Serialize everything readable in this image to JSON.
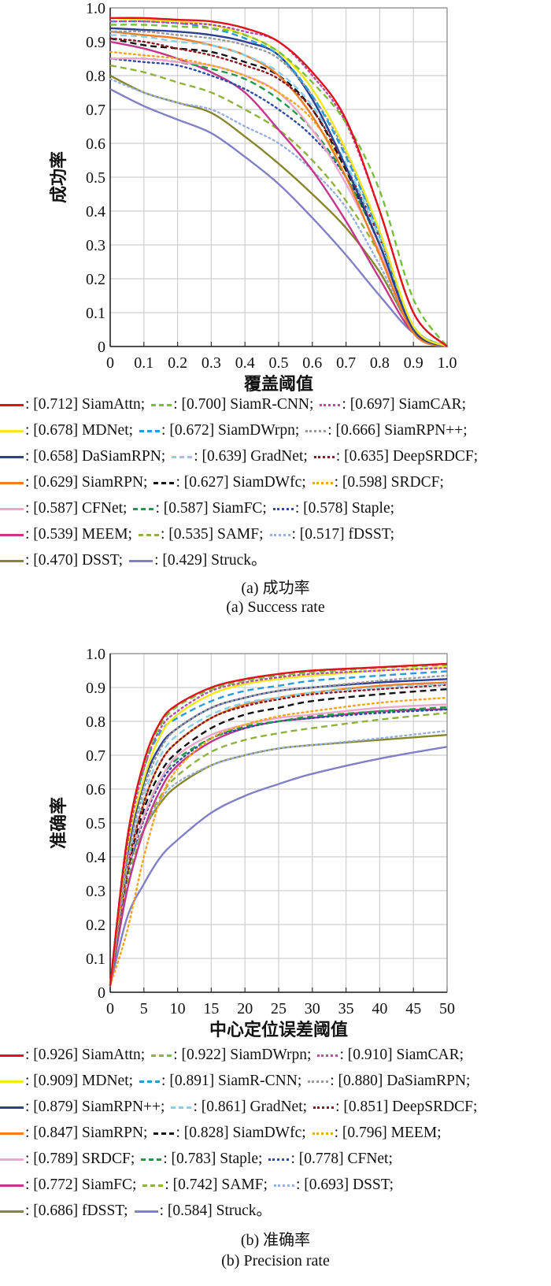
{
  "styles": [
    {
      "color": "#e0121c",
      "dash": "solid"
    },
    {
      "color": "#79bf3a",
      "dash": "dashed"
    },
    {
      "color": "#b24fa8",
      "dash": "dotted"
    },
    {
      "color": "#f2e81a",
      "dash": "solid"
    },
    {
      "color": "#2b9bd8",
      "dash": "dashed"
    },
    {
      "color": "#9a9a9a",
      "dash": "dotted"
    },
    {
      "color": "#2c3f93",
      "dash": "solid"
    },
    {
      "color": "#86cfe6",
      "dash": "dashed"
    },
    {
      "color": "#8c1620",
      "dash": "dotted"
    },
    {
      "color": "#f07d22",
      "dash": "solid"
    },
    {
      "color": "#111111",
      "dash": "dashed"
    },
    {
      "color": "#f5a31c",
      "dash": "dotted"
    },
    {
      "color": "#f0a6cc",
      "dash": "solid"
    },
    {
      "color": "#1d9b48",
      "dash": "dashed"
    },
    {
      "color": "#2e4aa3",
      "dash": "dotted"
    },
    {
      "color": "#c4358c",
      "dash": "solid"
    },
    {
      "color": "#8fb23c",
      "dash": "dashed"
    },
    {
      "color": "#97aee0",
      "dash": "dotted"
    },
    {
      "color": "#86862a",
      "dash": "solid"
    },
    {
      "color": "#8080c4",
      "dash": "solid"
    }
  ],
  "chart_data": [
    {
      "type": "line",
      "title": "",
      "xlabel": "覆盖阈值",
      "ylabel": "成功率",
      "xlim": [
        0,
        1
      ],
      "ylim": [
        0,
        1
      ],
      "xticks": [
        "0",
        "0.1",
        "0.2",
        "0.3",
        "0.4",
        "0.5",
        "0.6",
        "0.7",
        "0.8",
        "0.9",
        "1.0"
      ],
      "yticks": [
        "0",
        "0.1",
        "0.2",
        "0.3",
        "0.4",
        "0.5",
        "0.6",
        "0.7",
        "0.8",
        "0.9",
        "1.0"
      ],
      "grid": true,
      "legend_placement": "below",
      "caption_cn": "(a) 成功率",
      "caption_en": "(a) Success rate",
      "x": [
        0,
        0.1,
        0.2,
        0.3,
        0.4,
        0.5,
        0.6,
        0.7,
        0.8,
        0.9,
        1.0
      ],
      "series": [
        {
          "name": "SiamAttn",
          "score": "0.712",
          "suffix": ";",
          "values": [
            0.97,
            0.97,
            0.965,
            0.96,
            0.94,
            0.9,
            0.81,
            0.67,
            0.4,
            0.1,
            0
          ]
        },
        {
          "name": "SiamR-CNN",
          "score": "0.700",
          "suffix": ";",
          "values": [
            0.95,
            0.95,
            0.945,
            0.94,
            0.92,
            0.87,
            0.78,
            0.66,
            0.46,
            0.14,
            0
          ]
        },
        {
          "name": "SiamCAR",
          "score": "0.697",
          "suffix": ";",
          "values": [
            0.96,
            0.96,
            0.955,
            0.95,
            0.93,
            0.9,
            0.8,
            0.66,
            0.4,
            0.1,
            0
          ]
        },
        {
          "name": "MDNet",
          "score": "0.678",
          "suffix": ";",
          "values": [
            0.97,
            0.965,
            0.96,
            0.95,
            0.92,
            0.87,
            0.76,
            0.58,
            0.34,
            0.06,
            0
          ]
        },
        {
          "name": "SiamDWrpn",
          "score": "0.672",
          "suffix": ";",
          "values": [
            0.96,
            0.96,
            0.955,
            0.94,
            0.91,
            0.86,
            0.74,
            0.56,
            0.33,
            0.06,
            0
          ]
        },
        {
          "name": "SiamRPN++",
          "score": "0.666",
          "suffix": ";",
          "values": [
            0.93,
            0.93,
            0.92,
            0.91,
            0.89,
            0.85,
            0.74,
            0.57,
            0.33,
            0.06,
            0
          ]
        },
        {
          "name": "DaSiamRPN",
          "score": "0.658",
          "suffix": ";",
          "values": [
            0.94,
            0.935,
            0.93,
            0.92,
            0.9,
            0.86,
            0.73,
            0.53,
            0.3,
            0.05,
            0
          ]
        },
        {
          "name": "GradNet",
          "score": "0.639",
          "suffix": ";",
          "values": [
            0.92,
            0.915,
            0.9,
            0.89,
            0.86,
            0.81,
            0.71,
            0.54,
            0.32,
            0.06,
            0
          ]
        },
        {
          "name": "DeepSRDCF",
          "score": "0.635",
          "suffix": ";",
          "values": [
            0.91,
            0.9,
            0.88,
            0.86,
            0.83,
            0.79,
            0.7,
            0.53,
            0.32,
            0.06,
            0
          ]
        },
        {
          "name": "SiamRPN",
          "score": "0.629",
          "suffix": ";",
          "values": [
            0.93,
            0.92,
            0.91,
            0.89,
            0.86,
            0.8,
            0.68,
            0.5,
            0.27,
            0.04,
            0
          ]
        },
        {
          "name": "SiamDWfc",
          "score": "0.627",
          "suffix": ";",
          "values": [
            0.91,
            0.89,
            0.88,
            0.87,
            0.84,
            0.8,
            0.7,
            0.52,
            0.3,
            0.05,
            0
          ]
        },
        {
          "name": "SRDCF",
          "score": "0.598",
          "suffix": ";",
          "values": [
            0.87,
            0.86,
            0.85,
            0.83,
            0.8,
            0.75,
            0.67,
            0.52,
            0.3,
            0.05,
            0
          ]
        },
        {
          "name": "CFNet",
          "score": "0.587",
          "suffix": ";",
          "values": [
            0.85,
            0.85,
            0.84,
            0.83,
            0.8,
            0.75,
            0.64,
            0.48,
            0.28,
            0.04,
            0
          ]
        },
        {
          "name": "SiamFC",
          "score": "0.587",
          "suffix": ";",
          "values": [
            0.85,
            0.85,
            0.84,
            0.82,
            0.79,
            0.73,
            0.64,
            0.5,
            0.3,
            0.05,
            0
          ]
        },
        {
          "name": "Staple",
          "score": "0.578",
          "suffix": ";",
          "values": [
            0.85,
            0.84,
            0.83,
            0.8,
            0.76,
            0.7,
            0.62,
            0.5,
            0.3,
            0.05,
            0
          ]
        },
        {
          "name": "MEEM",
          "score": "0.539",
          "suffix": ";",
          "values": [
            0.9,
            0.88,
            0.85,
            0.81,
            0.75,
            0.64,
            0.52,
            0.37,
            0.2,
            0.04,
            0
          ]
        },
        {
          "name": "SAMF",
          "score": "0.535",
          "suffix": ";",
          "values": [
            0.83,
            0.81,
            0.78,
            0.75,
            0.7,
            0.64,
            0.55,
            0.43,
            0.27,
            0.05,
            0
          ]
        },
        {
          "name": "fDSST",
          "score": "0.517",
          "suffix": ";",
          "values": [
            0.79,
            0.75,
            0.72,
            0.7,
            0.65,
            0.6,
            0.52,
            0.41,
            0.24,
            0.05,
            0
          ]
        },
        {
          "name": "DSST",
          "score": "0.470",
          "suffix": ";",
          "values": [
            0.8,
            0.75,
            0.72,
            0.69,
            0.62,
            0.54,
            0.45,
            0.35,
            0.22,
            0.05,
            0
          ]
        },
        {
          "name": "Struck",
          "score": "0.429",
          "suffix": "。",
          "values": [
            0.76,
            0.71,
            0.67,
            0.63,
            0.56,
            0.48,
            0.38,
            0.27,
            0.15,
            0.04,
            0
          ]
        }
      ]
    },
    {
      "type": "line",
      "title": "",
      "xlabel": "中心定位误差阈值",
      "ylabel": "准确率",
      "xlim": [
        0,
        50
      ],
      "ylim": [
        0,
        1
      ],
      "xticks": [
        "0",
        "5",
        "10",
        "15",
        "20",
        "25",
        "30",
        "35",
        "40",
        "45",
        "50"
      ],
      "yticks": [
        "0",
        "0.1",
        "0.2",
        "0.3",
        "0.4",
        "0.5",
        "0.6",
        "0.7",
        "0.8",
        "0.9",
        "1.0"
      ],
      "grid": true,
      "legend_placement": "below",
      "caption_cn": "(b) 准确率",
      "caption_en": "(b) Precision rate",
      "x": [
        0,
        2.5,
        5,
        7.5,
        10,
        15,
        20,
        25,
        30,
        40,
        50
      ],
      "series": [
        {
          "name": "SiamAttn",
          "score": "0.926",
          "suffix": ";",
          "values": [
            0.02,
            0.45,
            0.68,
            0.8,
            0.85,
            0.9,
            0.925,
            0.94,
            0.95,
            0.96,
            0.97
          ]
        },
        {
          "name": "SiamDWrpn",
          "score": "0.922",
          "suffix": ";",
          "values": [
            0.02,
            0.45,
            0.67,
            0.79,
            0.845,
            0.895,
            0.92,
            0.935,
            0.945,
            0.958,
            0.966
          ]
        },
        {
          "name": "SiamCAR",
          "score": "0.910",
          "suffix": ";",
          "values": [
            0.02,
            0.43,
            0.66,
            0.78,
            0.83,
            0.89,
            0.915,
            0.93,
            0.94,
            0.95,
            0.958
          ]
        },
        {
          "name": "MDNet",
          "score": "0.909",
          "suffix": ";",
          "values": [
            0.02,
            0.42,
            0.63,
            0.76,
            0.82,
            0.88,
            0.91,
            0.925,
            0.935,
            0.95,
            0.96
          ]
        },
        {
          "name": "SiamR-CNN",
          "score": "0.891",
          "suffix": ";",
          "values": [
            0.02,
            0.45,
            0.66,
            0.77,
            0.81,
            0.86,
            0.89,
            0.905,
            0.92,
            0.935,
            0.948
          ]
        },
        {
          "name": "DaSiamRPN",
          "score": "0.880",
          "suffix": ";",
          "values": [
            0.02,
            0.38,
            0.6,
            0.72,
            0.78,
            0.84,
            0.87,
            0.89,
            0.9,
            0.92,
            0.935
          ]
        },
        {
          "name": "SiamRPN++",
          "score": "0.879",
          "suffix": ";",
          "values": [
            0.02,
            0.4,
            0.62,
            0.73,
            0.78,
            0.84,
            0.87,
            0.89,
            0.9,
            0.915,
            0.925
          ]
        },
        {
          "name": "GradNet",
          "score": "0.861",
          "suffix": ";",
          "values": [
            0.02,
            0.37,
            0.58,
            0.7,
            0.76,
            0.82,
            0.855,
            0.87,
            0.885,
            0.9,
            0.91
          ]
        },
        {
          "name": "DeepSRDCF",
          "score": "0.851",
          "suffix": ";",
          "values": [
            0.02,
            0.36,
            0.56,
            0.68,
            0.74,
            0.81,
            0.845,
            0.865,
            0.88,
            0.895,
            0.908
          ]
        },
        {
          "name": "SiamRPN",
          "score": "0.847",
          "suffix": ";",
          "values": [
            0.02,
            0.36,
            0.56,
            0.68,
            0.74,
            0.81,
            0.85,
            0.87,
            0.885,
            0.905,
            0.915
          ]
        },
        {
          "name": "SiamDWfc",
          "score": "0.828",
          "suffix": ";",
          "values": [
            0.02,
            0.35,
            0.54,
            0.65,
            0.71,
            0.78,
            0.82,
            0.84,
            0.86,
            0.88,
            0.895
          ]
        },
        {
          "name": "MEEM",
          "score": "0.796",
          "suffix": ";",
          "values": [
            0.02,
            0.18,
            0.4,
            0.57,
            0.66,
            0.75,
            0.79,
            0.815,
            0.83,
            0.855,
            0.87
          ]
        },
        {
          "name": "SRDCF",
          "score": "0.789",
          "suffix": ";",
          "values": [
            0.02,
            0.35,
            0.52,
            0.63,
            0.7,
            0.76,
            0.79,
            0.81,
            0.82,
            0.84,
            0.85
          ]
        },
        {
          "name": "Staple",
          "score": "0.783",
          "suffix": ";",
          "values": [
            0.02,
            0.35,
            0.52,
            0.63,
            0.69,
            0.75,
            0.785,
            0.8,
            0.815,
            0.83,
            0.842
          ]
        },
        {
          "name": "CFNet",
          "score": "0.778",
          "suffix": ";",
          "values": [
            0.02,
            0.34,
            0.51,
            0.62,
            0.68,
            0.75,
            0.78,
            0.8,
            0.81,
            0.825,
            0.835
          ]
        },
        {
          "name": "SiamFC",
          "score": "0.772",
          "suffix": ";",
          "values": [
            0.02,
            0.3,
            0.48,
            0.6,
            0.67,
            0.74,
            0.78,
            0.8,
            0.81,
            0.83,
            0.836
          ]
        },
        {
          "name": "SAMF",
          "score": "0.742",
          "suffix": ";",
          "values": [
            0.02,
            0.32,
            0.48,
            0.58,
            0.64,
            0.71,
            0.745,
            0.765,
            0.78,
            0.805,
            0.825
          ]
        },
        {
          "name": "DSST",
          "score": "0.693",
          "suffix": ";",
          "values": [
            0.02,
            0.35,
            0.48,
            0.57,
            0.62,
            0.67,
            0.7,
            0.72,
            0.73,
            0.75,
            0.772
          ]
        },
        {
          "name": "fDSST",
          "score": "0.686",
          "suffix": ";",
          "values": [
            0.02,
            0.35,
            0.48,
            0.56,
            0.61,
            0.67,
            0.7,
            0.72,
            0.73,
            0.745,
            0.76
          ]
        },
        {
          "name": "Struck",
          "score": "0.584",
          "suffix": "。",
          "values": [
            0.02,
            0.22,
            0.32,
            0.4,
            0.45,
            0.53,
            0.58,
            0.615,
            0.645,
            0.69,
            0.725
          ]
        }
      ]
    }
  ]
}
